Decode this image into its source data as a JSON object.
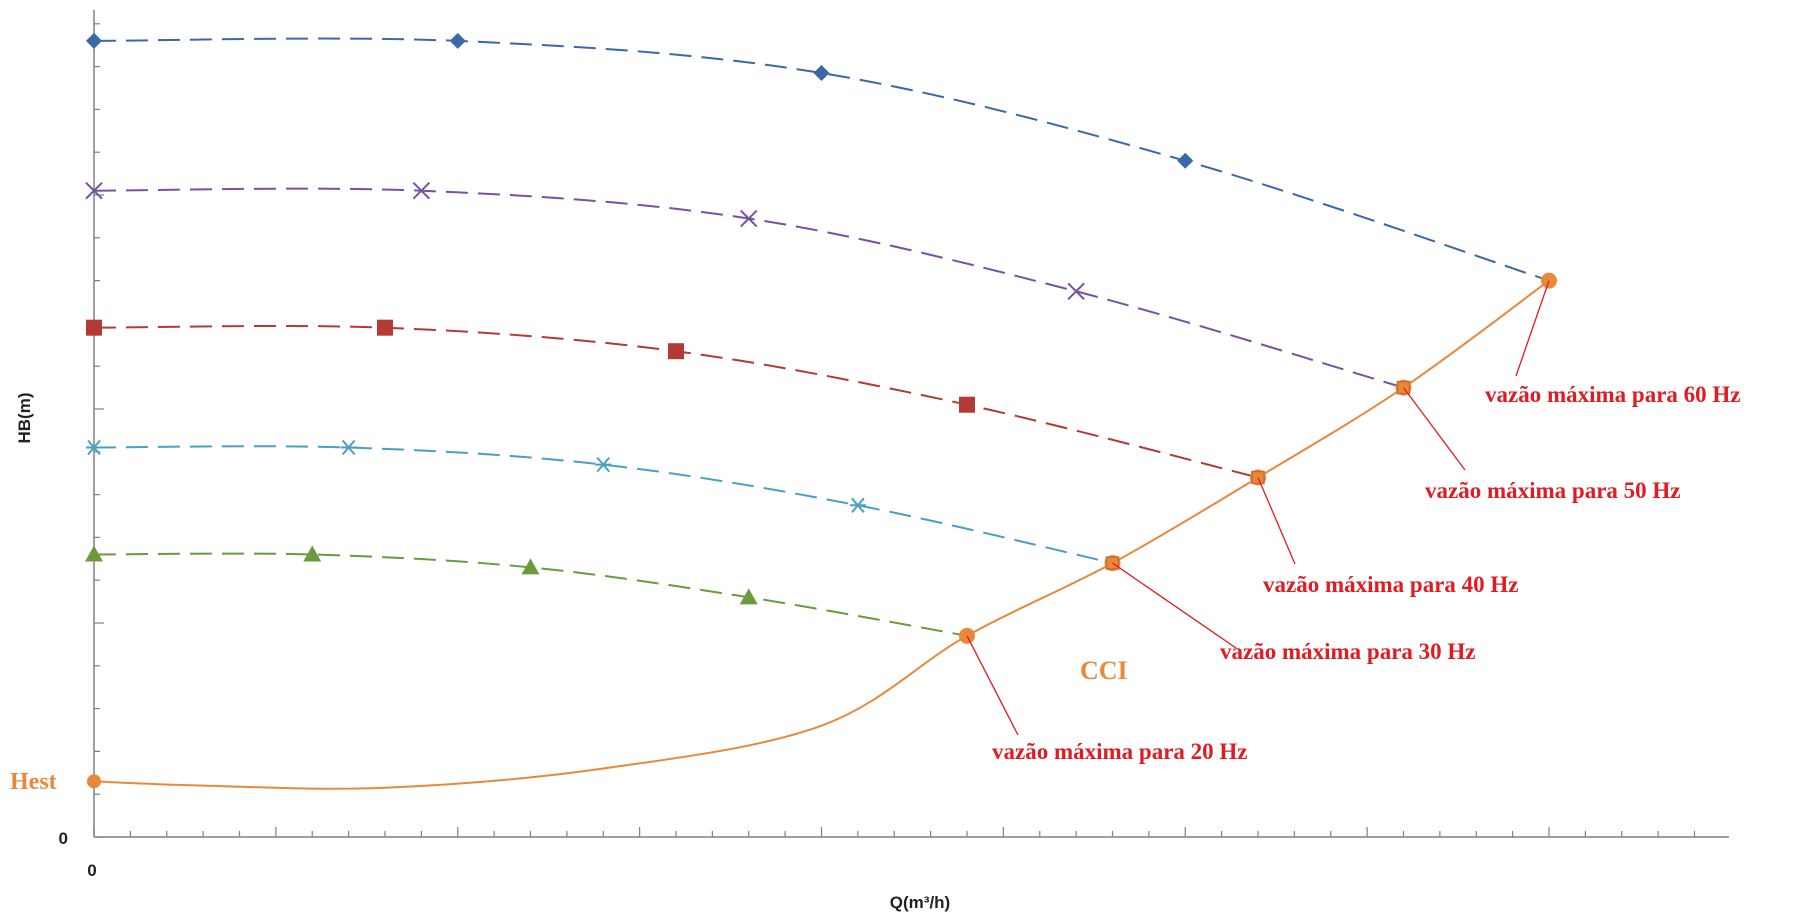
{
  "chart_data": {
    "type": "line",
    "xlabel": "Q(m³/h)",
    "ylabel": "HB(m)",
    "x_origin_label": "0",
    "y_origin_label": "0",
    "xlim": [
      0,
      9
    ],
    "ylim": [
      0,
      20.9
    ],
    "grid": false,
    "legend": "none",
    "series": [
      {
        "key": "60hz",
        "marker": "diamond",
        "color": "#3b68a8",
        "points": [
          [
            0,
            18.6
          ],
          [
            2,
            18.6
          ],
          [
            4,
            17.85
          ],
          [
            6,
            15.8
          ],
          [
            8,
            13.0
          ]
        ]
      },
      {
        "key": "50hz",
        "marker": "x",
        "color": "#7752a3",
        "points": [
          [
            0,
            15.1
          ],
          [
            1.8,
            15.1
          ],
          [
            3.6,
            14.45
          ],
          [
            5.4,
            12.75
          ],
          [
            7.2,
            10.5
          ]
        ]
      },
      {
        "key": "40hz",
        "marker": "square",
        "color": "#b33a35",
        "points": [
          [
            0,
            11.9
          ],
          [
            1.6,
            11.9
          ],
          [
            3.2,
            11.35
          ],
          [
            4.8,
            10.1
          ],
          [
            6.4,
            8.4
          ]
        ]
      },
      {
        "key": "30hz",
        "marker": "asterisk",
        "color": "#4b9fc2",
        "points": [
          [
            0,
            9.1
          ],
          [
            1.4,
            9.1
          ],
          [
            2.8,
            8.7
          ],
          [
            4.2,
            7.75
          ],
          [
            5.6,
            6.4
          ]
        ]
      },
      {
        "key": "20hz",
        "marker": "triangle",
        "color": "#6b9b3d",
        "points": [
          [
            0,
            6.6
          ],
          [
            1.2,
            6.6
          ],
          [
            2.4,
            6.3
          ],
          [
            3.6,
            5.6
          ],
          [
            4.8,
            4.7
          ]
        ]
      }
    ],
    "system_curve": {
      "label": "CCI",
      "color": "#e8893a",
      "points": [
        [
          0,
          1.3
        ],
        [
          0.6,
          1.2
        ],
        [
          1.6,
          1.15
        ],
        [
          2.8,
          1.6
        ],
        [
          4,
          2.6
        ],
        [
          4.8,
          4.7
        ],
        [
          5.6,
          6.4
        ],
        [
          6.4,
          8.4
        ],
        [
          7.2,
          10.5
        ],
        [
          8,
          13.0
        ]
      ]
    },
    "hest_label": "Hest",
    "annotations": [
      {
        "key": "max60",
        "text": "vazão máxima para 60 Hz",
        "point": [
          8,
          13.0
        ]
      },
      {
        "key": "max50",
        "text": "vazão máxima para 50 Hz",
        "point": [
          7.2,
          10.5
        ]
      },
      {
        "key": "max40",
        "text": "vazão máxima para 40 Hz",
        "point": [
          6.4,
          8.4
        ]
      },
      {
        "key": "max30",
        "text": "vazão máxima para 30 Hz",
        "point": [
          5.6,
          6.4
        ]
      },
      {
        "key": "max20",
        "text": "vazão máxima para 20 Hz",
        "point": [
          4.8,
          4.7
        ]
      }
    ],
    "annotation_color": "#e11b22"
  }
}
